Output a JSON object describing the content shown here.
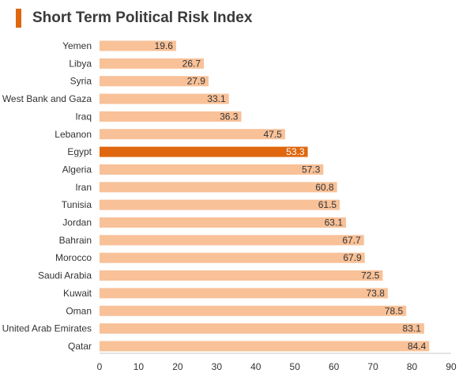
{
  "colors": {
    "accent": "#E0670F",
    "bar": "#F8C198",
    "bar_highlight": "#E0670F",
    "label_text": "#333333",
    "label_text_highlight": "#ffffff",
    "axis": "#c8c8c8"
  },
  "chart_data": {
    "type": "bar",
    "orientation": "horizontal",
    "title": "Short Term Political Risk Index",
    "categories": [
      "Yemen",
      "Libya",
      "Syria",
      "West Bank and Gaza",
      "Iraq",
      "Lebanon",
      "Egypt",
      "Algeria",
      "Iran",
      "Tunisia",
      "Jordan",
      "Bahrain",
      "Morocco",
      "Saudi Arabia",
      "Kuwait",
      "Oman",
      "United Arab Emirates",
      "Qatar"
    ],
    "values": [
      19.6,
      26.7,
      27.9,
      33.1,
      36.3,
      47.5,
      53.3,
      57.3,
      60.8,
      61.5,
      63.1,
      67.7,
      67.9,
      72.5,
      73.8,
      78.5,
      83.1,
      84.4
    ],
    "value_labels": [
      "19.6",
      "26.7",
      "27.9",
      "33.1",
      "36.3",
      "47.5",
      "53.3",
      "57.3",
      "60.8",
      "61.5",
      "63.1",
      "67.7",
      "67.9",
      "72.5",
      "73.8",
      "78.5",
      "83.1",
      "84.4"
    ],
    "highlight": "Egypt",
    "xlim": [
      0,
      90
    ],
    "xticks": [
      "0",
      "10",
      "20",
      "30",
      "40",
      "50",
      "60",
      "70",
      "80",
      "90"
    ],
    "xlabel": "",
    "ylabel": "",
    "grid": false,
    "legend": "none",
    "data_labels": "inside-end"
  }
}
